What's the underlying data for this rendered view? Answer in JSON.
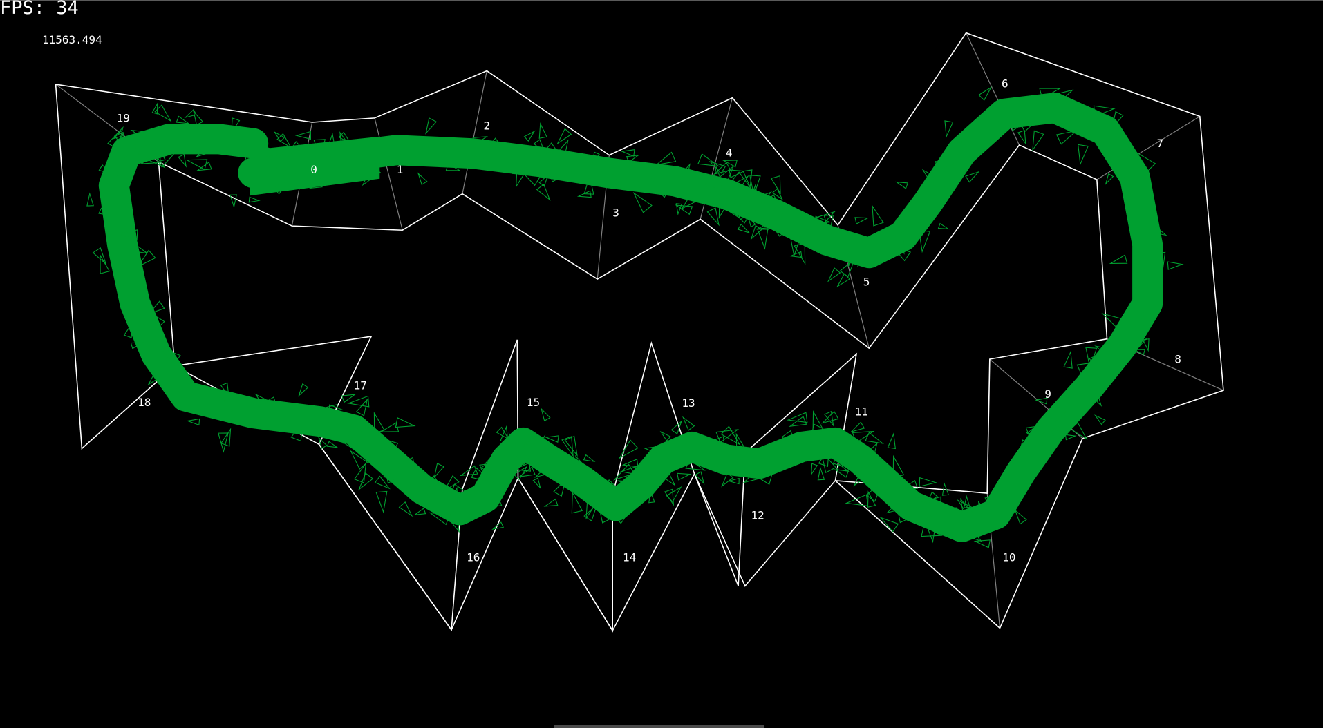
{
  "hud": {
    "fps_label": "FPS: 34",
    "score": "11563.494"
  },
  "colors": {
    "background": "#000000",
    "track_wall": "#ffffff",
    "checkpoint_line": "#808080",
    "agent": "#00a030",
    "label": "#ffffff"
  },
  "checkpoints": [
    {
      "id": "0",
      "label": "0"
    },
    {
      "id": "1",
      "label": "1"
    },
    {
      "id": "2",
      "label": "2"
    },
    {
      "id": "3",
      "label": "3"
    },
    {
      "id": "4",
      "label": "4"
    },
    {
      "id": "5",
      "label": "5"
    },
    {
      "id": "6",
      "label": "6"
    },
    {
      "id": "7",
      "label": "7"
    },
    {
      "id": "8",
      "label": "8"
    },
    {
      "id": "9",
      "label": "9"
    },
    {
      "id": "10",
      "label": "10"
    },
    {
      "id": "11",
      "label": "11"
    },
    {
      "id": "12",
      "label": "12"
    },
    {
      "id": "13",
      "label": "13"
    },
    {
      "id": "14",
      "label": "14"
    },
    {
      "id": "15",
      "label": "15"
    },
    {
      "id": "16",
      "label": "16"
    },
    {
      "id": "17",
      "label": "17"
    },
    {
      "id": "18",
      "label": "18"
    },
    {
      "id": "19",
      "label": "19"
    }
  ]
}
